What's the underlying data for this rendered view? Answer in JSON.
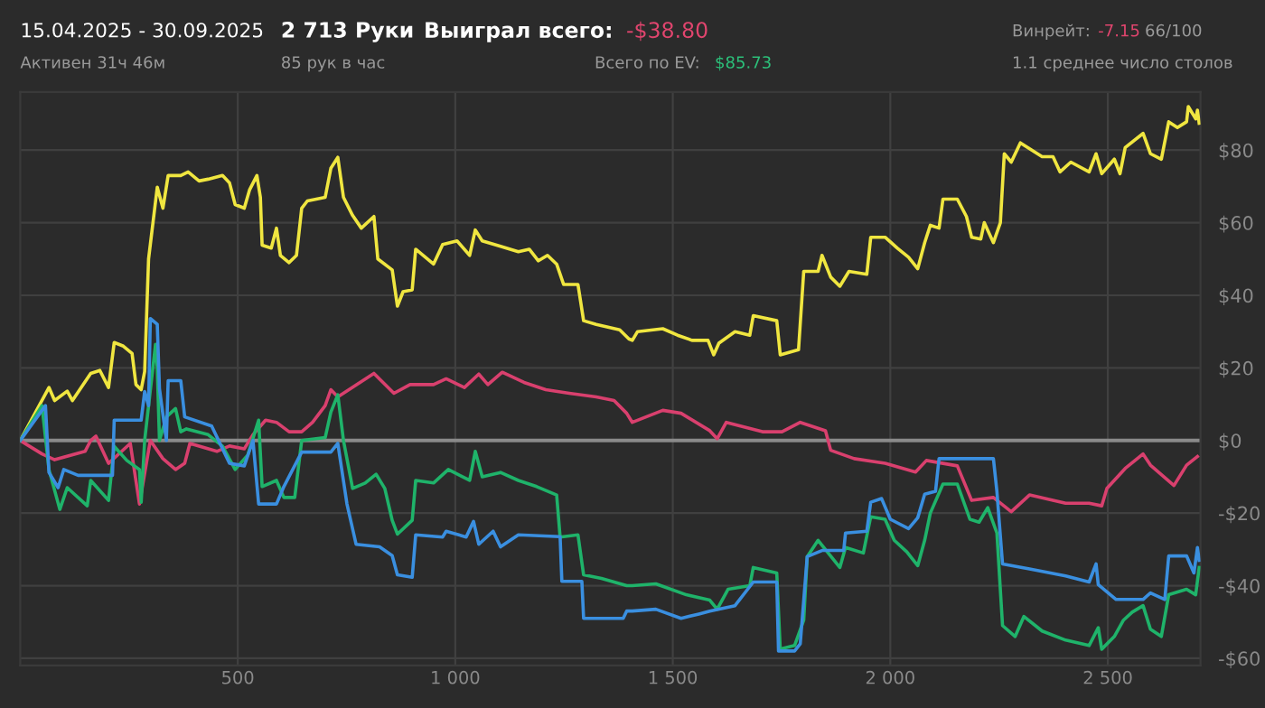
{
  "chart_data": {
    "type": "line",
    "title": "15.04.2025 - 30.09.2025",
    "subtitle": "Активен 31ч 46м",
    "annotations": [
      "2 713 Руки",
      "85 рук в час",
      "Выиграл всего:",
      "-$38.80",
      "Всего по EV:",
      "$85.73",
      "Винрейт:",
      "-7.15",
      "66/100",
      "1.1 среднее число столов"
    ],
    "xlim": [
      0,
      2713
    ],
    "xticks": [
      {
        "value": 500,
        "label": "500"
      },
      {
        "value": 1000,
        "label": "1 000"
      },
      {
        "value": 1500,
        "label": "1 500"
      },
      {
        "value": 2000,
        "label": "2 000"
      },
      {
        "value": 2500,
        "label": "2 500"
      }
    ],
    "ylim": [
      -62,
      96
    ],
    "yticks": [
      {
        "value": -60,
        "label": "-$60"
      },
      {
        "value": -40,
        "label": "-$40"
      },
      {
        "value": -20,
        "label": "-$20"
      },
      {
        "value": 0,
        "label": "$0"
      },
      {
        "value": 20,
        "label": "$20"
      },
      {
        "value": 40,
        "label": "$40"
      },
      {
        "value": 60,
        "label": "$60"
      },
      {
        "value": 80,
        "label": "$80"
      }
    ],
    "grid": true,
    "line_style": "solid",
    "ref_lines": [
      {
        "axis": "y",
        "value": 0,
        "color": "#8a8a8a"
      }
    ],
    "series": [
      {
        "color": "#f0e640",
        "x": [
          0,
          66,
          79,
          108,
          120,
          162,
          183,
          203,
          216,
          237,
          257,
          266,
          278,
          286,
          295,
          315,
          328,
          340,
          369,
          386,
          411,
          432,
          465,
          481,
          494,
          515,
          527,
          544,
          552,
          556,
          577,
          589,
          598,
          618,
          635,
          647,
          660,
          701,
          714,
          730,
          743,
          764,
          784,
          813,
          822,
          855,
          867,
          880,
          901,
          909,
          950,
          971,
          1004,
          1033,
          1046,
          1062,
          1104,
          1145,
          1170,
          1191,
          1212,
          1233,
          1249,
          1282,
          1295,
          1324,
          1378,
          1399,
          1407,
          1419,
          1477,
          1511,
          1544,
          1581,
          1594,
          1606,
          1643,
          1677,
          1685,
          1739,
          1747,
          1789,
          1801,
          1834,
          1843,
          1863,
          1884,
          1905,
          1946,
          1955,
          1988,
          2017,
          2042,
          2063,
          2079,
          2092,
          2112,
          2121,
          2154,
          2175,
          2187,
          2208,
          2216,
          2237,
          2253,
          2262,
          2278,
          2299,
          2349,
          2374,
          2390,
          2415,
          2457,
          2473,
          2486,
          2515,
          2528,
          2540,
          2581,
          2598,
          2623,
          2640,
          2660,
          2681,
          2685,
          2702,
          2706,
          2710
        ],
        "values": [
          0,
          14.6,
          11,
          13.6,
          11,
          18.5,
          19.3,
          14.6,
          27,
          26,
          24,
          15.4,
          14,
          19,
          50,
          69.8,
          64,
          73,
          73,
          74,
          71.5,
          72,
          73,
          71,
          65,
          64,
          69,
          73,
          67,
          53.8,
          53,
          58.5,
          51,
          49,
          51,
          64,
          66,
          67,
          75,
          78,
          67,
          62,
          58.5,
          61.7,
          50,
          47,
          37,
          41,
          41.5,
          52.7,
          48.6,
          54,
          55,
          51,
          58,
          55,
          53.5,
          52,
          52.7,
          49.5,
          51,
          48.6,
          43,
          43,
          33,
          32,
          30.5,
          28,
          27.6,
          30,
          30.8,
          29,
          27.6,
          27.6,
          23.6,
          26.8,
          30,
          29,
          34.4,
          33,
          23.6,
          25,
          46.6,
          46.6,
          51,
          45,
          42.5,
          46.6,
          45.8,
          56,
          56,
          52.9,
          50.5,
          47.3,
          54.5,
          59.3,
          58.5,
          66.5,
          66.5,
          61.7,
          56,
          55.5,
          60,
          54.5,
          60,
          79,
          76.7,
          82,
          78.2,
          78.2,
          74,
          76.7,
          74,
          79,
          73.5,
          77.5,
          73.5,
          80.7,
          84.6,
          79,
          77.5,
          87.8,
          86.2,
          87.8,
          92,
          88.6,
          91,
          87.4
        ]
      },
      {
        "color": "#d9406e",
        "x": [
          0,
          50,
          79,
          149,
          162,
          174,
          203,
          253,
          274,
          299,
          328,
          357,
          378,
          390,
          452,
          481,
          515,
          535,
          564,
          589,
          618,
          647,
          672,
          701,
          714,
          730,
          813,
          859,
          896,
          950,
          979,
          1021,
          1054,
          1075,
          1108,
          1158,
          1208,
          1262,
          1324,
          1365,
          1394,
          1407,
          1477,
          1519,
          1585,
          1602,
          1623,
          1706,
          1751,
          1793,
          1851,
          1863,
          1917,
          1988,
          2058,
          2083,
          2154,
          2187,
          2237,
          2278,
          2320,
          2403,
          2457,
          2486,
          2498,
          2540,
          2581,
          2598,
          2652,
          2681,
          2706
        ],
        "values": [
          0,
          -3.7,
          -5.3,
          -3,
          0,
          1.2,
          -6.3,
          -0.8,
          -17.5,
          0,
          -5,
          -8,
          -6.3,
          -0.8,
          -3,
          -1.5,
          -2.3,
          1.6,
          5.6,
          5,
          2.4,
          2.4,
          5,
          9.6,
          14,
          12,
          18.5,
          13,
          15.4,
          15.4,
          17,
          14.6,
          18.3,
          15.4,
          18.8,
          16,
          14,
          13,
          12,
          11,
          7.5,
          5,
          8.3,
          7.5,
          2.7,
          0.5,
          5,
          2.4,
          2.4,
          5,
          2.7,
          -2.7,
          -5,
          -6.3,
          -8.7,
          -5.5,
          -7,
          -16.5,
          -15.7,
          -19.6,
          -15,
          -17.3,
          -17.3,
          -18,
          -13.2,
          -7.7,
          -3.7,
          -6.8,
          -12.4,
          -6.8,
          -4.4
        ]
      },
      {
        "color": "#1fb36a",
        "x": [
          0,
          50,
          66,
          91,
          108,
          154,
          162,
          203,
          216,
          245,
          274,
          278,
          286,
          311,
          315,
          320,
          336,
          357,
          369,
          382,
          432,
          465,
          494,
          523,
          548,
          556,
          589,
          606,
          631,
          647,
          701,
          714,
          730,
          743,
          764,
          793,
          818,
          838,
          855,
          867,
          901,
          909,
          950,
          984,
          1033,
          1046,
          1062,
          1104,
          1145,
          1187,
          1233,
          1241,
          1282,
          1295,
          1336,
          1394,
          1407,
          1461,
          1531,
          1585,
          1602,
          1627,
          1677,
          1685,
          1739,
          1747,
          1780,
          1801,
          1809,
          1834,
          1884,
          1897,
          1938,
          1955,
          1988,
          2009,
          2038,
          2063,
          2079,
          2092,
          2121,
          2154,
          2183,
          2204,
          2224,
          2245,
          2258,
          2287,
          2307,
          2349,
          2403,
          2457,
          2478,
          2486,
          2515,
          2536,
          2556,
          2581,
          2598,
          2623,
          2640,
          2681,
          2702,
          2710
        ],
        "values": [
          0,
          9.6,
          -8,
          -19,
          -13,
          -18,
          -11,
          -16.5,
          -1.6,
          -5.5,
          -8,
          -17,
          0,
          26.5,
          20,
          0,
          6.5,
          8.8,
          2.4,
          3.2,
          1.6,
          -1.6,
          -8,
          -4,
          5.6,
          -12.7,
          -11,
          -15.7,
          -15.7,
          0,
          0.8,
          7.8,
          12.6,
          0,
          -13.2,
          -11.7,
          -9.3,
          -13.2,
          -22,
          -25.8,
          -22,
          -11,
          -11.7,
          -8,
          -11,
          -3,
          -10,
          -8.8,
          -11,
          -12.7,
          -15,
          -26.6,
          -26,
          -37,
          -38,
          -40,
          -40,
          -39.5,
          -42.5,
          -44,
          -46.5,
          -41,
          -40,
          -35,
          -36.5,
          -57.5,
          -56.5,
          -49.5,
          -32,
          -27.5,
          -35,
          -29.5,
          -31,
          -21,
          -21.7,
          -27.5,
          -30.7,
          -34.5,
          -27.5,
          -20,
          -12,
          -12,
          -21.7,
          -22.5,
          -18.5,
          -25.5,
          -51,
          -54,
          -48.5,
          -52.5,
          -55,
          -56.5,
          -51.6,
          -57.5,
          -54,
          -49.5,
          -47.3,
          -45.5,
          -52,
          -54,
          -42.5,
          -41,
          -42.5,
          -35
        ]
      },
      {
        "color": "#3a8fe0",
        "x": [
          0,
          58,
          66,
          87,
          100,
          133,
          212,
          216,
          278,
          286,
          295,
          299,
          315,
          320,
          336,
          340,
          369,
          378,
          440,
          481,
          515,
          535,
          548,
          589,
          606,
          647,
          714,
          730,
          751,
          772,
          826,
          855,
          867,
          901,
          909,
          971,
          979,
          1025,
          1042,
          1054,
          1087,
          1104,
          1145,
          1241,
          1245,
          1291,
          1295,
          1386,
          1394,
          1407,
          1461,
          1519,
          1560,
          1585,
          1643,
          1685,
          1739,
          1743,
          1780,
          1793,
          1809,
          1843,
          1893,
          1897,
          1946,
          1955,
          1980,
          2000,
          2042,
          2063,
          2079,
          2104,
          2112,
          2237,
          2245,
          2258,
          2320,
          2403,
          2457,
          2473,
          2478,
          2519,
          2581,
          2598,
          2631,
          2640,
          2681,
          2698,
          2706,
          2710
        ],
        "values": [
          0,
          9.6,
          -8.8,
          -13,
          -8,
          -9.6,
          -9.6,
          5.6,
          5.6,
          13.5,
          9.6,
          33.6,
          32,
          14.3,
          0,
          16.5,
          16.5,
          6.5,
          4,
          -6.3,
          -7,
          0,
          -17.5,
          -17.5,
          -12.7,
          -3.2,
          -3.2,
          -0.8,
          -17.5,
          -28.6,
          -29.3,
          -31.7,
          -37,
          -37.7,
          -26,
          -26.6,
          -25,
          -26.6,
          -22.3,
          -28.6,
          -25,
          -29.3,
          -26,
          -26.5,
          -38.8,
          -38.8,
          -49,
          -49,
          -47,
          -47,
          -46.5,
          -49,
          -47.8,
          -47,
          -45.5,
          -39,
          -39,
          -58,
          -58,
          -56,
          -32,
          -30.3,
          -30.3,
          -25.5,
          -25,
          -17,
          -16,
          -21.7,
          -24.3,
          -21.3,
          -14.8,
          -14,
          -5,
          -5,
          -14,
          -34,
          -35.4,
          -37.3,
          -39,
          -34,
          -39.7,
          -43.8,
          -43.8,
          -42,
          -43.8,
          -31.8,
          -31.8,
          -36.5,
          -29.5,
          -33
        ]
      }
    ]
  }
}
